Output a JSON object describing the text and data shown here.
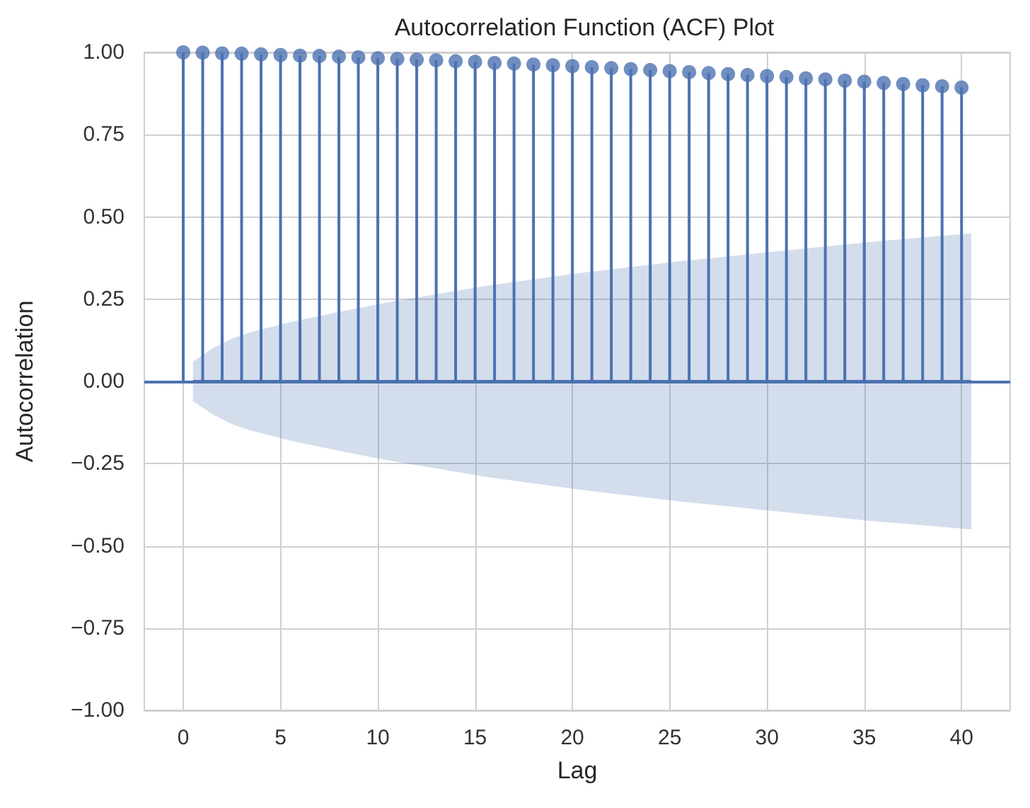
{
  "chart_data": {
    "type": "lollipop",
    "title": "Autocorrelation Function (ACF) Plot",
    "xlabel": "Lag",
    "ylabel": "Autocorrelation",
    "x": [
      0,
      1,
      2,
      3,
      4,
      5,
      6,
      7,
      8,
      9,
      10,
      11,
      12,
      13,
      14,
      15,
      16,
      17,
      18,
      19,
      20,
      21,
      22,
      23,
      24,
      25,
      26,
      27,
      28,
      29,
      30,
      31,
      32,
      33,
      34,
      35,
      36,
      37,
      38,
      39,
      40
    ],
    "series": [
      {
        "color": "#4c72b0",
        "marker": "circle",
        "values": [
          1.0,
          0.999,
          0.997,
          0.996,
          0.994,
          0.992,
          0.99,
          0.989,
          0.987,
          0.985,
          0.982,
          0.98,
          0.978,
          0.976,
          0.973,
          0.971,
          0.968,
          0.966,
          0.963,
          0.961,
          0.958,
          0.955,
          0.952,
          0.949,
          0.946,
          0.943,
          0.94,
          0.937,
          0.934,
          0.931,
          0.928,
          0.925,
          0.921,
          0.918,
          0.914,
          0.911,
          0.907,
          0.904,
          0.9,
          0.897,
          0.893
        ]
      },
      {
        "type": "line",
        "color": "#4c72b0",
        "marker": "none",
        "x": [
          0.5,
          1.5,
          2.5,
          3.5,
          5.5,
          7.5,
          10.5,
          15.5,
          20.5,
          25.5,
          30.5,
          35.5,
          40.5
        ],
        "values": [
          0,
          0,
          0,
          0,
          0,
          0,
          0,
          0,
          0,
          0,
          0,
          0,
          0
        ],
        "lower": [
          -0.06,
          -0.1,
          -0.13,
          -0.15,
          -0.18,
          -0.205,
          -0.24,
          -0.29,
          -0.33,
          -0.365,
          -0.395,
          -0.425,
          -0.45
        ],
        "upper": [
          0.06,
          0.1,
          0.13,
          0.15,
          0.18,
          0.205,
          0.24,
          0.29,
          0.33,
          0.365,
          0.395,
          0.425,
          0.45
        ]
      }
    ],
    "ref_lines": [
      {
        "axis": "y",
        "value": 0,
        "color": "#4c72b0"
      }
    ],
    "xlim": [
      -2,
      42.5
    ],
    "xticks": [
      0,
      5,
      10,
      15,
      20,
      25,
      30,
      35,
      40
    ],
    "ylim": [
      -1,
      1
    ],
    "yticks": [
      {
        "value": -1,
        "label": "−1.00"
      },
      {
        "value": -0.75,
        "label": "−0.75"
      },
      {
        "value": -0.5,
        "label": "−0.50"
      },
      {
        "value": -0.25,
        "label": "−0.25"
      },
      {
        "value": 0,
        "label": "0.00"
      },
      {
        "value": 0.25,
        "label": "0.25"
      },
      {
        "value": 0.5,
        "label": "0.50"
      },
      {
        "value": 0.75,
        "label": "0.75"
      },
      {
        "value": 1,
        "label": "1.00"
      }
    ],
    "grid": true
  }
}
